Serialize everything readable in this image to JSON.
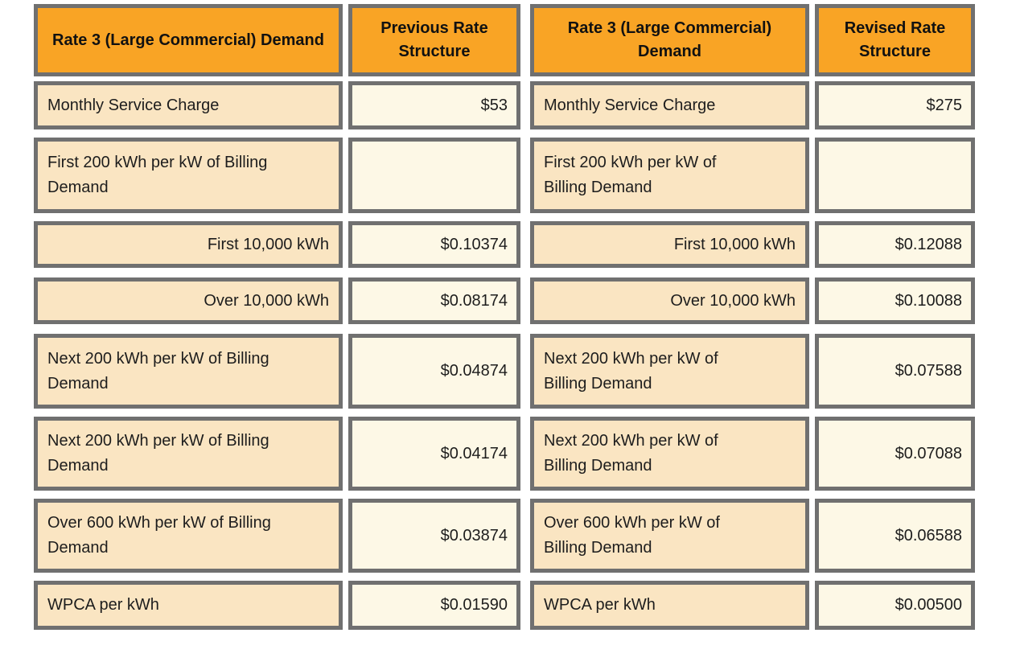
{
  "colors": {
    "header_bg": "#F9A425",
    "label_bg": "#FAE5C2",
    "value_bg": "#FDF8E6",
    "border": "#707070",
    "text": "#1D1D1D"
  },
  "headers": [
    "Rate 3 (Large Commercial) Demand",
    "Previous Rate Structure",
    "Rate 3 (Large Commercial) Demand",
    "Revised Rate Structure"
  ],
  "rows": [
    {
      "prev_label": "Monthly Service Charge",
      "prev_value": "$53",
      "rev_label": "Monthly Service Charge",
      "rev_value": "$275"
    },
    {
      "prev_label": "First 200 kWh per kW of Billing Demand",
      "prev_value": "",
      "rev_label": "First 200 kWh per kW of Billing Demand",
      "rev_value": ""
    },
    {
      "prev_label": "First 10,000 kWh",
      "prev_value": "$0.10374",
      "rev_label": "First 10,000 kWh",
      "rev_value": "$0.12088"
    },
    {
      "prev_label": "Over 10,000 kWh",
      "prev_value": "$0.08174",
      "rev_label": "Over 10,000 kWh",
      "rev_value": "$0.10088"
    },
    {
      "prev_label": "Next 200 kWh per kW of Billing Demand",
      "prev_value": "$0.04874",
      "rev_label": "Next 200 kWh per kW of Billing Demand",
      "rev_value": "$0.07588"
    },
    {
      "prev_label": "Next 200 kWh per kW of Billing Demand",
      "prev_value": "$0.04174",
      "rev_label": "Next 200 kWh per kW of Billing Demand",
      "rev_value": "$0.07088"
    },
    {
      "prev_label": "Over 600 kWh per kW of Billing Demand",
      "prev_value": "$0.03874",
      "rev_label": "Over 600 kWh per kW of Billing Demand",
      "rev_value": "$0.06588"
    },
    {
      "prev_label": "WPCA per kWh",
      "prev_value": "$0.01590",
      "rev_label": "WPCA per kWh",
      "rev_value": "$0.00500"
    }
  ],
  "chart_data": {
    "type": "table",
    "columns": [
      "Rate 3 (Large Commercial) Demand",
      "Previous Rate Structure",
      "Rate 3 (Large Commercial) Demand",
      "Revised Rate Structure"
    ],
    "rows": [
      [
        "Monthly Service Charge",
        "$53",
        "Monthly Service Charge",
        "$275"
      ],
      [
        "First 200 kWh per kW of Billing Demand",
        "",
        "First 200 kWh per kW of Billing Demand",
        ""
      ],
      [
        "First 10,000 kWh",
        "$0.10374",
        "First 10,000 kWh",
        "$0.12088"
      ],
      [
        "Over 10,000 kWh",
        "$0.08174",
        "Over 10,000 kWh",
        "$0.10088"
      ],
      [
        "Next 200 kWh per kW of Billing Demand",
        "$0.04874",
        "Next 200 kWh per kW of Billing Demand",
        "$0.07588"
      ],
      [
        "Next 200 kWh per kW of Billing Demand",
        "$0.04174",
        "Next 200 kWh per kW of Billing Demand",
        "$0.07088"
      ],
      [
        "Over 600 kWh per kW of Billing Demand",
        "$0.03874",
        "Over 600 kWh per kW of Billing Demand",
        "$0.06588"
      ],
      [
        "WPCA per kWh",
        "$0.01590",
        "WPCA per kWh",
        "$0.00500"
      ]
    ]
  }
}
